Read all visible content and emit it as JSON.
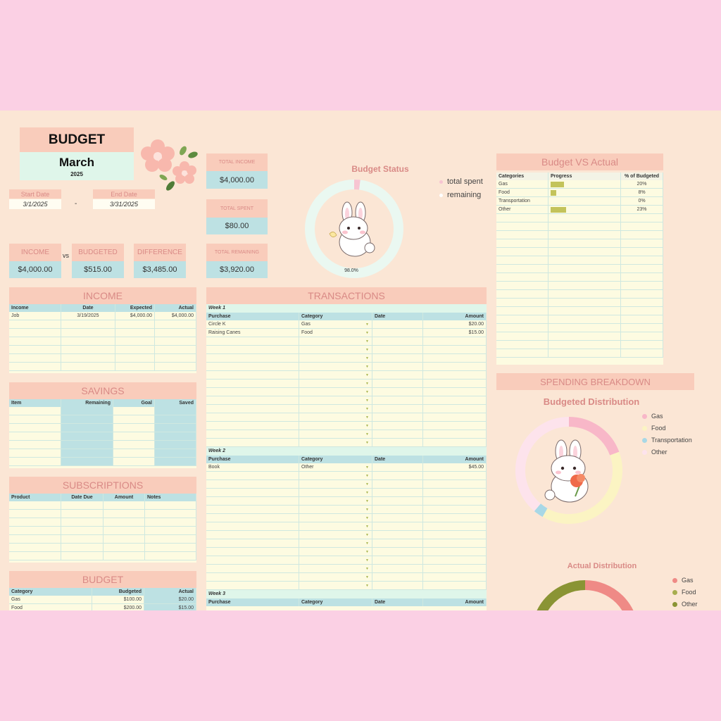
{
  "header": {
    "title": "BUDGET",
    "month": "March",
    "year": "2025",
    "start_label": "Start Date",
    "end_label": "End Date",
    "start_date": "3/1/2025",
    "end_date": "3/31/2025",
    "dash": "-"
  },
  "totals": {
    "income_label": "TOTAL INCOME",
    "income_value": "$4,000.00",
    "spent_label": "TOTAL SPENT",
    "spent_value": "$80.00",
    "remaining_label": "TOTAL REMAINING",
    "remaining_value": "$3,920.00"
  },
  "compare": {
    "income_label": "INCOME",
    "income_value": "$4,000.00",
    "vs": "vs",
    "budgeted_label": "BUDGETED",
    "budgeted_value": "$515.00",
    "difference_label": "DIFFERENCE",
    "difference_value": "$3,485.00"
  },
  "budget_status": {
    "title": "Budget Status",
    "legend": [
      "total spent",
      "remaining"
    ],
    "percent_label": "98.0%",
    "remaining_fraction": 0.98,
    "colors": {
      "spent": "#f7c5d2",
      "remaining": "#eaf8f1"
    }
  },
  "income": {
    "title": "INCOME",
    "headers": [
      "Income",
      "Date",
      "Expected",
      "Actual"
    ],
    "rows": [
      [
        "Job",
        "3/19/2025",
        "$4,000.00",
        "$4,000.00"
      ]
    ]
  },
  "savings": {
    "title": "SAVINGS",
    "headers": [
      "Item",
      "Remaining",
      "Goal",
      "Saved"
    ]
  },
  "subscriptions": {
    "title": "SUBSCRIPTIONS",
    "headers": [
      "Product",
      "Date Due",
      "Amount",
      "Notes"
    ]
  },
  "budget_table": {
    "title": "BUDGET",
    "headers": [
      "Category",
      "Budgeted",
      "Actual"
    ],
    "rows": [
      [
        "Gas",
        "$100.00",
        "$20.00"
      ],
      [
        "Food",
        "$200.00",
        "$15.00"
      ]
    ]
  },
  "transactions": {
    "title": "TRANSACTIONS",
    "headers": [
      "Purchase",
      "Category",
      "Date",
      "Amount"
    ],
    "weeks": [
      {
        "label": "Week 1",
        "rows": [
          [
            "Circle K",
            "Gas",
            "",
            "$20.00"
          ],
          [
            "Raising Canes",
            "Food",
            "",
            "$15.00"
          ]
        ]
      },
      {
        "label": "Week 2",
        "rows": [
          [
            "Book",
            "Other",
            "",
            "$45.00"
          ]
        ]
      },
      {
        "label": "Week 3",
        "rows": []
      }
    ]
  },
  "bva": {
    "title": "Budget VS Actual",
    "headers": [
      "Categories",
      "Progress",
      "% of Budgeted"
    ],
    "rows": [
      {
        "category": "Gas",
        "progress": 0.2,
        "pct": "20%"
      },
      {
        "category": "Food",
        "progress": 0.08,
        "pct": "8%"
      },
      {
        "category": "Transportation",
        "progress": 0.0,
        "pct": "0%"
      },
      {
        "category": "Other",
        "progress": 0.23,
        "pct": "23%"
      }
    ],
    "bar_color": "#c3c35a"
  },
  "spending": {
    "title": "SPENDING BREAKDOWN",
    "budgeted_title": "Budgeted Distribution",
    "actual_title": "Actual Distribution"
  },
  "chart_data": [
    {
      "type": "pie",
      "title": "Budgeted Distribution",
      "categories": [
        "Gas",
        "Food",
        "Transportation",
        "Other"
      ],
      "values": [
        19.4,
        38.8,
        3.0,
        38.8
      ],
      "colors": [
        "#f8b7c8",
        "#fbf4c3",
        "#a8d8e6",
        "#fde3ec"
      ]
    },
    {
      "type": "pie",
      "title": "Actual Distribution",
      "categories": [
        "Gas",
        "Food",
        "Other"
      ],
      "values": [
        25,
        18.75,
        56.25
      ],
      "colors": [
        "#ef8a86",
        "#a7ad4e",
        "#8a9434"
      ]
    }
  ]
}
